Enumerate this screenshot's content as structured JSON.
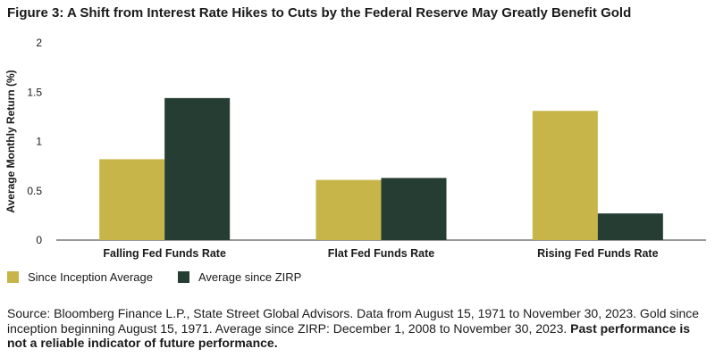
{
  "chart_data": {
    "type": "bar",
    "title": "Figure 3: A Shift from Interest Rate Hikes to Cuts by the Federal Reserve May Greatly Benefit Gold",
    "xlabel": "",
    "ylabel": "Average Monthly Return (%)",
    "ylim": [
      0,
      2
    ],
    "yticks": [
      "0",
      "0.5",
      "1",
      "1.5",
      "2"
    ],
    "ytick_values": [
      0,
      0.5,
      1,
      1.5,
      2
    ],
    "categories": [
      "Falling Fed Funds Rate",
      "Flat Fed Funds Rate",
      "Rising Fed Funds Rate"
    ],
    "series": [
      {
        "name": "Since Inception Average",
        "values": [
          0.82,
          0.61,
          1.31
        ],
        "color": "#c7b54a"
      },
      {
        "name": "Average since ZIRP",
        "values": [
          1.44,
          0.63,
          0.27
        ],
        "color": "#253d33"
      }
    ],
    "legend_position": "bottom-left",
    "grid": false
  },
  "source": {
    "text": "Source: Bloomberg Finance L.P., State Street Global Advisors. Data from August 15, 1971 to November 30, 2023. Gold since inception beginning August 15, 1971. Average since ZIRP: December 1, 2008 to November 30, 2023.",
    "emphasis": "Past performance is not a reliable indicator of future performance."
  }
}
